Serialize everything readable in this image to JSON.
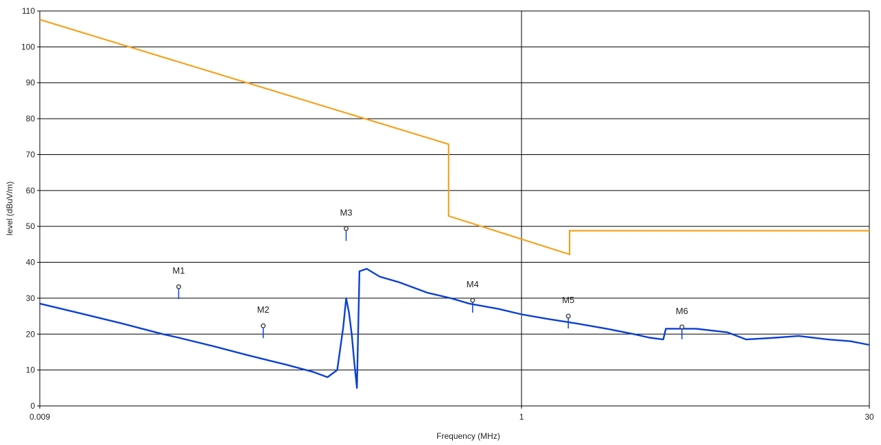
{
  "chart_data": {
    "type": "line",
    "title": "",
    "xlabel": "Frequency (MHz)",
    "ylabel": "level (dBuV/m)",
    "xscale": "log",
    "xlim": [
      0.009,
      30
    ],
    "ylim": [
      0,
      110
    ],
    "x_ticks": [
      {
        "value": 0.009,
        "label": "0.009"
      },
      {
        "value": 1,
        "label": "1"
      },
      {
        "value": 30,
        "label": "30"
      }
    ],
    "y_ticks": [
      0,
      10,
      20,
      30,
      40,
      50,
      60,
      70,
      80,
      90,
      100,
      110
    ],
    "grid": true,
    "colors": {
      "limit": "#f5a21b",
      "measurement": "#0b3fd6",
      "grid": "#000000",
      "marker": "#444444"
    },
    "series": [
      {
        "role": "limit",
        "points": [
          [
            0.009,
            107.6
          ],
          [
            0.49,
            72.9
          ],
          [
            0.49,
            52.9
          ],
          [
            1.6,
            42.2
          ],
          [
            1.6,
            48.8
          ],
          [
            30,
            48.8
          ]
        ]
      },
      {
        "role": "measurement",
        "points": [
          [
            0.009,
            28.5
          ],
          [
            0.013,
            26.0
          ],
          [
            0.02,
            23.0
          ],
          [
            0.03,
            20.0
          ],
          [
            0.035,
            19.0
          ],
          [
            0.05,
            16.5
          ],
          [
            0.07,
            14.0
          ],
          [
            0.1,
            11.5
          ],
          [
            0.13,
            9.5
          ],
          [
            0.15,
            8.0
          ],
          [
            0.165,
            10.0
          ],
          [
            0.175,
            22.0
          ],
          [
            0.18,
            30.0
          ],
          [
            0.185,
            26.0
          ],
          [
            0.19,
            20.0
          ],
          [
            0.195,
            12.0
          ],
          [
            0.2,
            5.0
          ],
          [
            0.205,
            37.5
          ],
          [
            0.22,
            38.2
          ],
          [
            0.25,
            36.0
          ],
          [
            0.3,
            34.5
          ],
          [
            0.4,
            31.5
          ],
          [
            0.5,
            30.0
          ],
          [
            0.6,
            28.5
          ],
          [
            0.8,
            27.0
          ],
          [
            1.0,
            25.5
          ],
          [
            1.3,
            24.2
          ],
          [
            1.7,
            23.0
          ],
          [
            2.3,
            21.5
          ],
          [
            3.0,
            20.0
          ],
          [
            3.5,
            19.0
          ],
          [
            4.0,
            18.5
          ],
          [
            4.1,
            21.5
          ],
          [
            5.5,
            21.5
          ],
          [
            7.5,
            20.5
          ],
          [
            9.0,
            18.5
          ],
          [
            12.0,
            19.0
          ],
          [
            15.0,
            19.5
          ],
          [
            20.0,
            18.5
          ],
          [
            25.0,
            18.0
          ],
          [
            30.0,
            17.0
          ]
        ]
      }
    ],
    "markers": [
      {
        "label": "M1",
        "x": 0.035,
        "y": 33.2
      },
      {
        "label": "M2",
        "x": 0.08,
        "y": 22.3
      },
      {
        "label": "M3",
        "x": 0.18,
        "y": 49.4
      },
      {
        "label": "M4",
        "x": 0.62,
        "y": 29.4
      },
      {
        "label": "M5",
        "x": 1.58,
        "y": 25.0
      },
      {
        "label": "M6",
        "x": 4.8,
        "y": 22.0
      }
    ]
  }
}
